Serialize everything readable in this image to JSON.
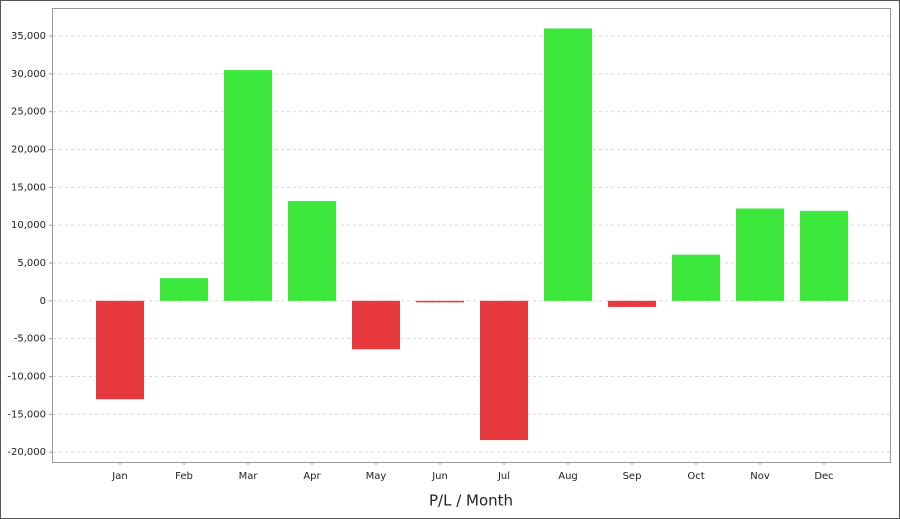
{
  "chart_data": {
    "type": "bar",
    "x_label": "P/L / Month",
    "categories": [
      "Jan",
      "Feb",
      "Mar",
      "Apr",
      "May",
      "Jun",
      "Jul",
      "Aug",
      "Sep",
      "Oct",
      "Nov",
      "Dec"
    ],
    "values": [
      -13000,
      3000,
      30500,
      13200,
      -6400,
      -200,
      -18400,
      36000,
      -800,
      6100,
      12200,
      11900
    ],
    "positive_color": "#3de83d",
    "negative_color": "#e8393f",
    "ylim": [
      -21300,
      38700
    ],
    "yticks": [
      {
        "value": -20000,
        "label": "-20,000"
      },
      {
        "value": -15000,
        "label": "-15,000"
      },
      {
        "value": -10000,
        "label": "-10,000"
      },
      {
        "value": -5000,
        "label": "-5,000"
      },
      0,
      {
        "value": 5000,
        "label": "5,000"
      },
      {
        "value": 10000,
        "label": "10,000"
      },
      {
        "value": 15000,
        "label": "15,000"
      },
      {
        "value": 20000,
        "label": "20,000"
      },
      {
        "value": 25000,
        "label": "25,000"
      },
      {
        "value": 30000,
        "label": "30,000"
      },
      {
        "value": 35000,
        "label": "35,000"
      }
    ],
    "grid": true
  }
}
